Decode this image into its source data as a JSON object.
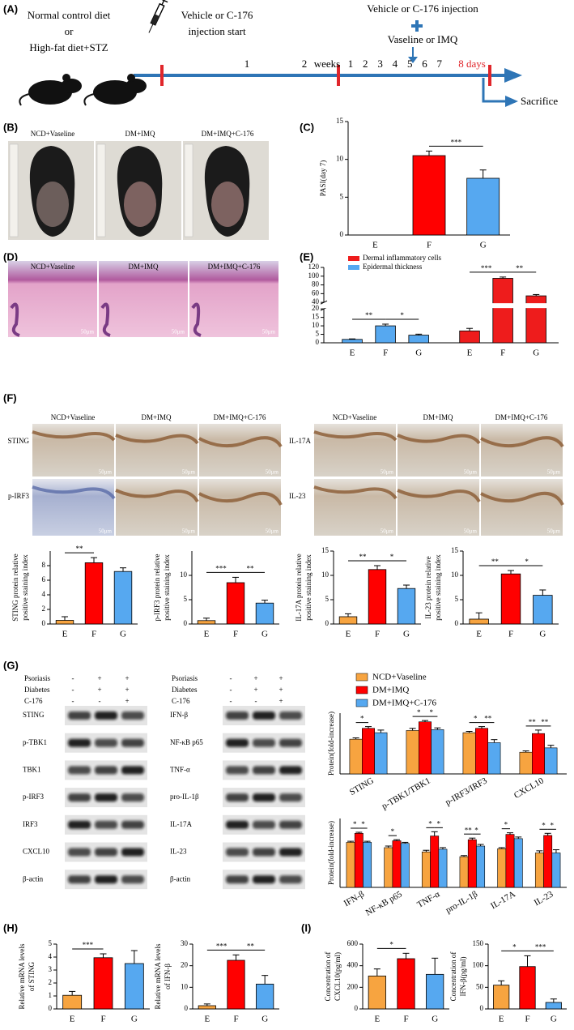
{
  "figure": {
    "panel_labels": [
      "(A)",
      "(B)",
      "(C)",
      "(D)",
      "(E)",
      "(F)",
      "(G)",
      "(H)",
      "(I)"
    ],
    "timeline": {
      "left_lines": [
        "Normal control diet",
        "or",
        "High-fat diet+STZ"
      ],
      "start_lines": [
        "Vehicle or C-176",
        "injection start"
      ],
      "injection": "Vehicle or C-176 injection",
      "challenge": "Vaseline or IMQ",
      "week_labels": [
        "1",
        "2"
      ],
      "weeks": "weeks",
      "day_labels": [
        "1",
        "2",
        "3",
        "4",
        "5",
        "6",
        "7"
      ],
      "end": "8 days",
      "sacrifice": "Sacrifice"
    },
    "groups": [
      "NCD+Vaseline",
      "DM+IMQ",
      "DM+IMQ+C-176"
    ],
    "scale_bar": "50μm",
    "ihc": {
      "left_rows": [
        "STING",
        "p-IRF3"
      ],
      "right_rows": [
        "IL-17A",
        "IL-23"
      ]
    },
    "western": {
      "conditions": [
        "Psoriasis",
        "Diabetes",
        "C-176"
      ],
      "signs": [
        [
          "-",
          "+",
          "+"
        ],
        [
          "-",
          "+",
          "+"
        ],
        [
          "-",
          "-",
          "+"
        ]
      ],
      "left_rows": [
        "STING",
        "p-TBK1",
        "TBK1",
        "p-IRF3",
        "IRF3",
        "CXCL10",
        "β-actin"
      ],
      "right_rows": [
        "IFN-β",
        "NF-κB p65",
        "TNF-α",
        "pro-IL-1β",
        "IL-17A",
        "IL-23",
        "β-actin"
      ]
    }
  },
  "chart_data": [
    {
      "type": "bar",
      "ylabel": [
        "PASI(day 7)"
      ],
      "categories": [
        "E",
        "F",
        "G"
      ],
      "values": [
        0,
        10.5,
        7.5
      ],
      "errors": [
        0,
        0.6,
        1.1
      ],
      "colors": [
        "#f7a440",
        "#ff0000",
        "#56a8f0"
      ],
      "ylim": [
        0,
        15
      ],
      "yticks": [
        0,
        5,
        10,
        15
      ],
      "significance": [
        {
          "pair": [
            1,
            2
          ],
          "label": "***"
        }
      ]
    },
    {
      "type": "broken_bar",
      "categories": [
        "E",
        "F",
        "G"
      ],
      "series": [
        {
          "name": "Dermal inflammatory cells",
          "color": "#ee1c1c",
          "values": [
            7,
            95,
            55
          ],
          "errors": [
            1.5,
            3,
            3
          ]
        },
        {
          "name": "Epidermal thickness",
          "color": "#56a8f0",
          "values": [
            2,
            10,
            4.5
          ],
          "errors": [
            0.3,
            1,
            0.6
          ]
        }
      ],
      "ylim": [
        0,
        120
      ],
      "ybreak": [
        20,
        40
      ],
      "yticks": [
        0,
        5,
        10,
        15,
        20,
        40,
        60,
        80,
        100,
        120
      ],
      "significance": [
        {
          "series": 1,
          "pair": [
            0,
            1
          ],
          "label": "**"
        },
        {
          "series": 1,
          "pair": [
            1,
            2
          ],
          "label": "*"
        },
        {
          "series": 0,
          "pair": [
            0,
            1
          ],
          "label": "***"
        },
        {
          "series": 0,
          "pair": [
            1,
            2
          ],
          "label": "**"
        }
      ]
    },
    {
      "type": "bar",
      "ylabel": [
        "STING protein relative",
        "positive staining index"
      ],
      "categories": [
        "E",
        "F",
        "G"
      ],
      "values": [
        0.5,
        8.4,
        7.2
      ],
      "errors": [
        0.5,
        0.7,
        0.5
      ],
      "colors": [
        "#f7a440",
        "#ff0000",
        "#56a8f0"
      ],
      "ylim": [
        0,
        10
      ],
      "yticks": [
        0,
        2,
        4,
        6,
        8
      ],
      "significance": [
        {
          "pair": [
            0,
            1
          ],
          "label": "**"
        }
      ]
    },
    {
      "type": "bar",
      "ylabel": [
        "p-IRF3 protein relative",
        "positive staining index"
      ],
      "categories": [
        "E",
        "F",
        "G"
      ],
      "values": [
        0.7,
        8.5,
        4.3
      ],
      "errors": [
        0.5,
        1.1,
        0.6
      ],
      "colors": [
        "#f7a440",
        "#ff0000",
        "#56a8f0"
      ],
      "ylim": [
        0,
        15
      ],
      "yticks": [
        0,
        5,
        10
      ],
      "significance": [
        {
          "pair": [
            0,
            1
          ],
          "label": "***"
        },
        {
          "pair": [
            1,
            2
          ],
          "label": "**"
        }
      ]
    },
    {
      "type": "bar",
      "ylabel": [
        "IL-17A protein relative",
        "positive staining index"
      ],
      "categories": [
        "E",
        "F",
        "G"
      ],
      "values": [
        1.5,
        11.2,
        7.3
      ],
      "errors": [
        0.6,
        0.8,
        0.7
      ],
      "colors": [
        "#f7a440",
        "#ff0000",
        "#56a8f0"
      ],
      "ylim": [
        0,
        15
      ],
      "yticks": [
        0,
        5,
        10,
        15
      ],
      "significance": [
        {
          "pair": [
            0,
            1
          ],
          "label": "**"
        },
        {
          "pair": [
            1,
            2
          ],
          "label": "*"
        }
      ]
    },
    {
      "type": "bar",
      "ylabel": [
        "IL-23 protein relative",
        "positive staining index"
      ],
      "categories": [
        "E",
        "F",
        "G"
      ],
      "values": [
        1.0,
        10.3,
        5.9
      ],
      "errors": [
        1.3,
        0.7,
        1.1
      ],
      "colors": [
        "#f7a440",
        "#ff0000",
        "#56a8f0"
      ],
      "ylim": [
        0,
        15
      ],
      "yticks": [
        0,
        5,
        10,
        15
      ],
      "significance": [
        {
          "pair": [
            0,
            1
          ],
          "label": "**"
        },
        {
          "pair": [
            1,
            2
          ],
          "label": "*"
        }
      ]
    },
    {
      "type": "grouped_bar",
      "ylabel": [
        "Protein(fold-increase)"
      ],
      "categories": [
        "STING",
        "p-TBK1/TBK1",
        "p-IRF3/IRF3",
        "CXCL10"
      ],
      "ylim": [
        0,
        1.4
      ],
      "series": [
        {
          "name": "NCD+Vaseline",
          "color": "#f7a440",
          "values": [
            0.8,
            1.0,
            0.95,
            0.5
          ],
          "errors": [
            0.03,
            0.05,
            0.03,
            0.03
          ]
        },
        {
          "name": "DM+IMQ",
          "color": "#ff0000",
          "values": [
            1.05,
            1.2,
            1.05,
            0.93
          ],
          "errors": [
            0.04,
            0.03,
            0.04,
            0.08
          ]
        },
        {
          "name": "DM+IMQ+C-176",
          "color": "#56a8f0",
          "values": [
            0.95,
            1.02,
            0.72,
            0.6
          ],
          "errors": [
            0.06,
            0.04,
            0.07,
            0.06
          ]
        }
      ],
      "significance": [
        {
          "category": 0,
          "pair": [
            0,
            1
          ],
          "label": "*"
        },
        {
          "category": 1,
          "pair": [
            0,
            1
          ],
          "label": "*"
        },
        {
          "category": 1,
          "pair": [
            1,
            2
          ],
          "label": "*"
        },
        {
          "category": 2,
          "pair": [
            0,
            1
          ],
          "label": "*"
        },
        {
          "category": 2,
          "pair": [
            1,
            2
          ],
          "label": "**"
        },
        {
          "category": 3,
          "pair": [
            0,
            1
          ],
          "label": "**"
        },
        {
          "category": 3,
          "pair": [
            1,
            2
          ],
          "label": "**"
        }
      ]
    },
    {
      "type": "grouped_bar",
      "ylabel": [
        "Protein(fold-increase)"
      ],
      "categories": [
        "IFN-β",
        "NF-κB p65",
        "TNF-α",
        "pro-IL-1β",
        "IL-17A",
        "IL-23"
      ],
      "ylim": [
        0,
        1.3
      ],
      "series": [
        {
          "color": "#f7a440",
          "values": [
            0.85,
            0.75,
            0.67,
            0.58,
            0.73,
            0.65
          ],
          "errors": [
            0.02,
            0.03,
            0.03,
            0.02,
            0.02,
            0.04
          ]
        },
        {
          "color": "#ff0000",
          "values": [
            1.02,
            0.88,
            0.97,
            0.9,
            1.0,
            0.98
          ],
          "errors": [
            0.02,
            0.02,
            0.08,
            0.03,
            0.03,
            0.04
          ]
        },
        {
          "color": "#56a8f0",
          "values": [
            0.85,
            0.83,
            0.72,
            0.78,
            0.92,
            0.65
          ],
          "errors": [
            0.02,
            0.02,
            0.03,
            0.03,
            0.03,
            0.06
          ]
        }
      ],
      "significance": [
        {
          "category": 0,
          "pair": [
            0,
            1
          ],
          "label": "*"
        },
        {
          "category": 0,
          "pair": [
            1,
            2
          ],
          "label": "*"
        },
        {
          "category": 1,
          "pair": [
            0,
            1
          ],
          "label": "*"
        },
        {
          "category": 2,
          "pair": [
            0,
            1
          ],
          "label": "*"
        },
        {
          "category": 2,
          "pair": [
            1,
            2
          ],
          "label": "*"
        },
        {
          "category": 3,
          "pair": [
            0,
            1
          ],
          "label": "**"
        },
        {
          "category": 3,
          "pair": [
            1,
            2
          ],
          "label": "*"
        },
        {
          "category": 4,
          "pair": [
            0,
            1
          ],
          "label": "*"
        },
        {
          "category": 5,
          "pair": [
            0,
            1
          ],
          "label": "*"
        },
        {
          "category": 5,
          "pair": [
            1,
            2
          ],
          "label": "*"
        }
      ]
    },
    {
      "type": "bar",
      "ylabel": [
        "Relative mRNA levels",
        "of STING"
      ],
      "categories": [
        "E",
        "F",
        "G"
      ],
      "values": [
        1.05,
        3.95,
        3.5
      ],
      "errors": [
        0.3,
        0.3,
        1.0
      ],
      "colors": [
        "#f7a440",
        "#ff0000",
        "#56a8f0"
      ],
      "ylim": [
        0,
        5
      ],
      "yticks": [
        0,
        1,
        2,
        3,
        4,
        5
      ],
      "significance": [
        {
          "pair": [
            0,
            1
          ],
          "label": "***"
        }
      ]
    },
    {
      "type": "bar",
      "ylabel": [
        "Relative mRNA levels",
        "of IFN-β"
      ],
      "categories": [
        "E",
        "F",
        "G"
      ],
      "values": [
        1.5,
        22.5,
        11.5
      ],
      "errors": [
        0.8,
        2.5,
        4
      ],
      "colors": [
        "#f7a440",
        "#ff0000",
        "#56a8f0"
      ],
      "ylim": [
        0,
        30
      ],
      "yticks": [
        0,
        10,
        20,
        30
      ],
      "significance": [
        {
          "pair": [
            0,
            1
          ],
          "label": "***"
        },
        {
          "pair": [
            1,
            2
          ],
          "label": "**"
        }
      ]
    },
    {
      "type": "bar",
      "ylabel": [
        "Concentration of",
        "CXCL10(pg/ml)"
      ],
      "categories": [
        "E",
        "F",
        "G"
      ],
      "values": [
        305,
        465,
        320
      ],
      "errors": [
        65,
        50,
        150
      ],
      "colors": [
        "#f7a440",
        "#ff0000",
        "#56a8f0"
      ],
      "ylim": [
        0,
        600
      ],
      "yticks": [
        0,
        200,
        400,
        600
      ],
      "significance": [
        {
          "pair": [
            0,
            1
          ],
          "label": "*"
        }
      ]
    },
    {
      "type": "bar",
      "ylabel": [
        "Concentration of",
        "IFN-β(pg/ml)"
      ],
      "categories": [
        "E",
        "F",
        "G"
      ],
      "values": [
        55,
        98,
        15
      ],
      "errors": [
        10,
        25,
        8
      ],
      "colors": [
        "#f7a440",
        "#ff0000",
        "#56a8f0"
      ],
      "ylim": [
        0,
        150
      ],
      "yticks": [
        0,
        50,
        100,
        150
      ],
      "significance": [
        {
          "pair": [
            0,
            1
          ],
          "label": "*"
        },
        {
          "pair": [
            1,
            2
          ],
          "label": "***"
        }
      ]
    }
  ]
}
